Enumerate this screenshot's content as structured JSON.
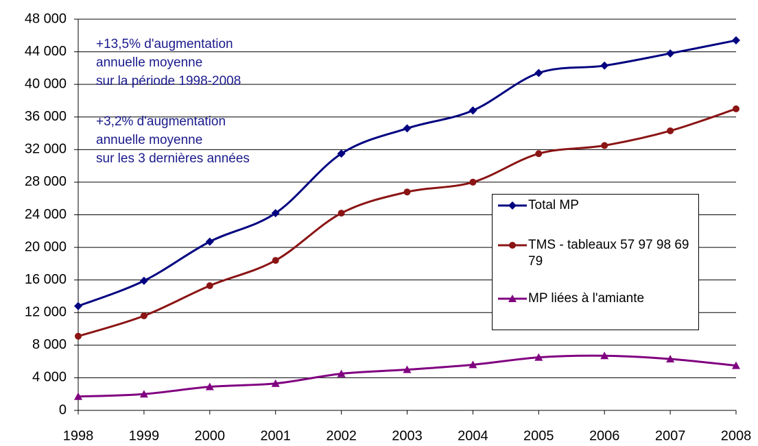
{
  "chart_data": {
    "type": "line",
    "categories": [
      "1998",
      "1999",
      "2000",
      "2001",
      "2002",
      "2003",
      "2004",
      "2005",
      "2006",
      "2007",
      "2008"
    ],
    "series": [
      {
        "name": "Total MP",
        "color": "#000080",
        "marker": "diamond",
        "values": [
          12800,
          15900,
          20700,
          24200,
          31500,
          34600,
          36800,
          41400,
          42300,
          43800,
          45400
        ]
      },
      {
        "name": "TMS - tableaux 57 97 98 69 79",
        "color": "#8b1414",
        "marker": "circle",
        "values": [
          9100,
          11600,
          15300,
          18400,
          24200,
          26800,
          28000,
          31500,
          32500,
          34300,
          37000
        ]
      },
      {
        "name": "MP liées à l'amiante",
        "color": "#800080",
        "marker": "triangle",
        "values": [
          1700,
          2000,
          2900,
          3300,
          4500,
          5000,
          5600,
          6500,
          6700,
          6300,
          5500
        ]
      }
    ],
    "annotations": [
      [
        "+13,5% d'augmentation",
        "annuelle moyenne",
        "sur la période 1998-2008"
      ],
      [
        "+3,2% d'augmentation",
        "annuelle moyenne",
        "sur les 3 dernières années"
      ]
    ],
    "ylim": [
      0,
      48000
    ],
    "yticks": [
      0,
      {
        "value": 4000,
        "label": "4 000"
      },
      {
        "value": 8000,
        "label": "8 000"
      },
      {
        "value": 12000,
        "label": "12 000"
      },
      {
        "value": 16000,
        "label": "16 000"
      },
      {
        "value": 20000,
        "label": "20 000"
      },
      {
        "value": 24000,
        "label": "24 000"
      },
      {
        "value": 28000,
        "label": "28 000"
      },
      {
        "value": 32000,
        "label": "32 000"
      },
      {
        "value": 36000,
        "label": "36 000"
      },
      {
        "value": 40000,
        "label": "40 000"
      },
      {
        "value": 44000,
        "label": "44 000"
      },
      {
        "value": 48000,
        "label": "48 000"
      }
    ],
    "grid": true,
    "smooth": true
  }
}
